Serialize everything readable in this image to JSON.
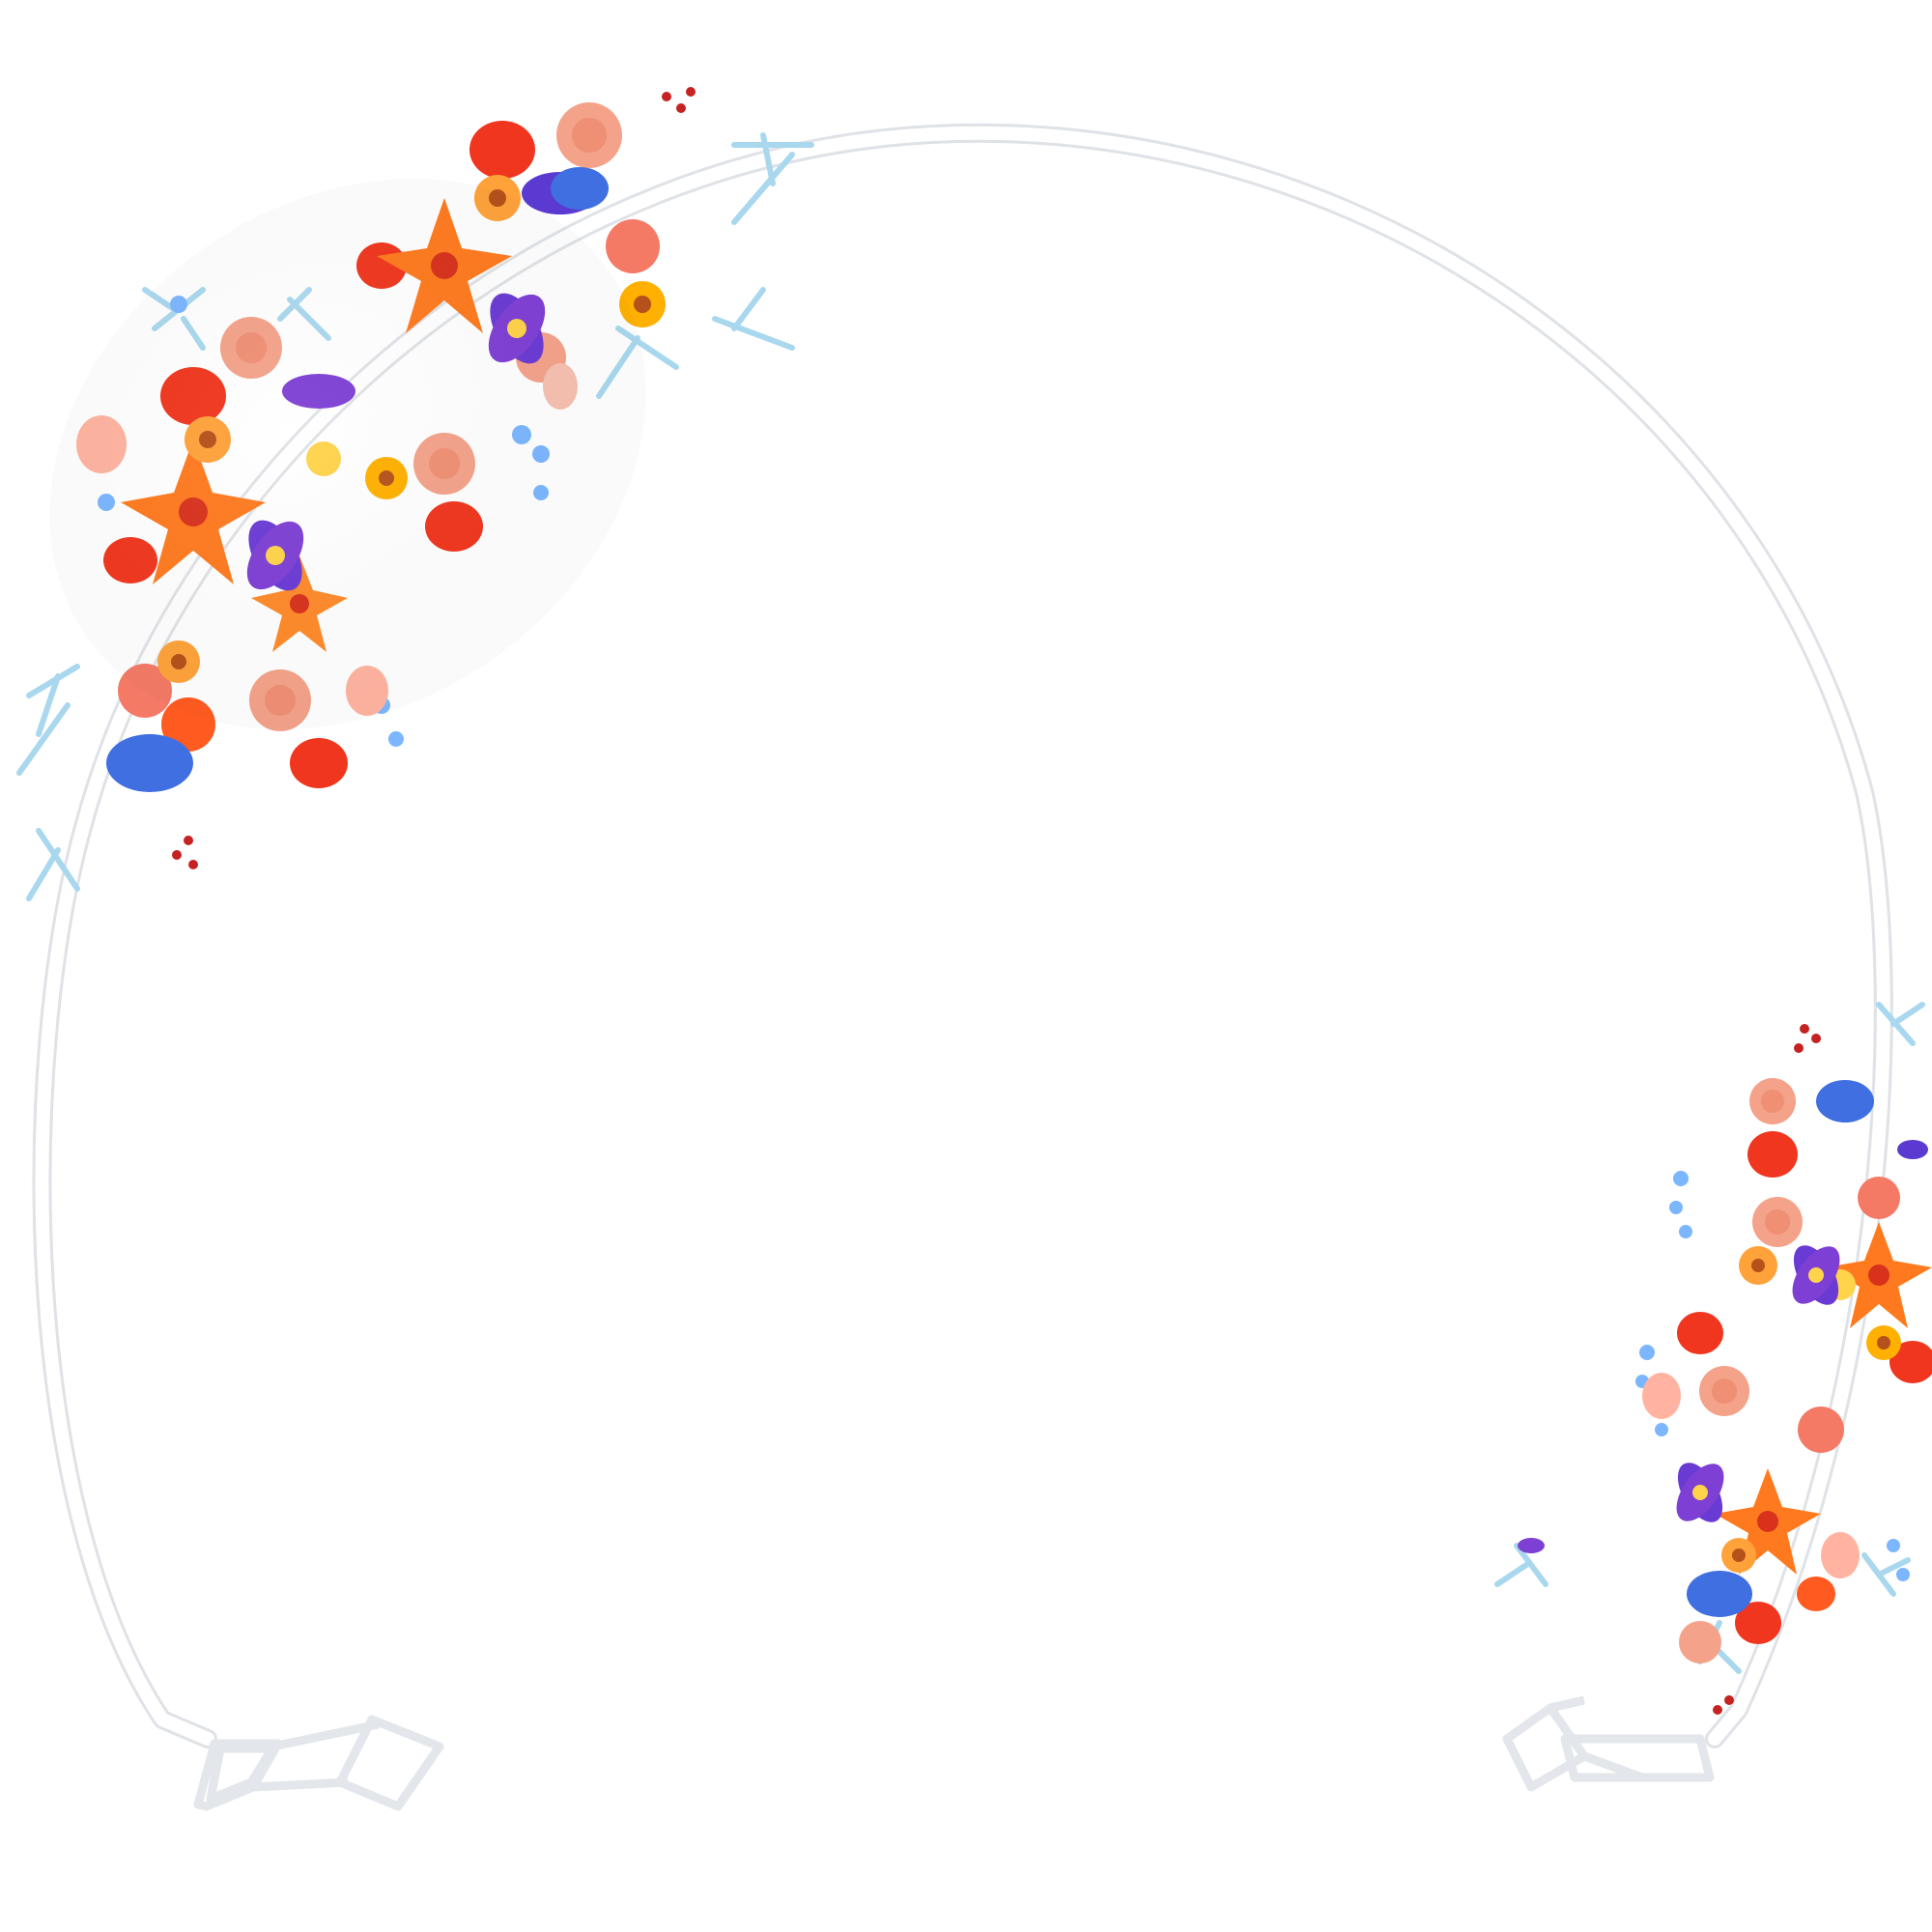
{
  "product": {
    "name": "round-arch-backdrop-stand",
    "frame_color": "#ffffff",
    "frame_edge_color": "#e6e8ec",
    "background": "#ffffff"
  },
  "floral": {
    "palette": [
      "#f0361e",
      "#ff5a1f",
      "#ff8a2a",
      "#ffa23a",
      "#f47a66",
      "#f4a289",
      "#ffb38a",
      "#7e3fd4",
      "#5a3ad0",
      "#3f6fe0",
      "#7bb6ff",
      "#9fd4ef",
      "#bfe6f5",
      "#ffd34a",
      "#b51d1d"
    ]
  }
}
